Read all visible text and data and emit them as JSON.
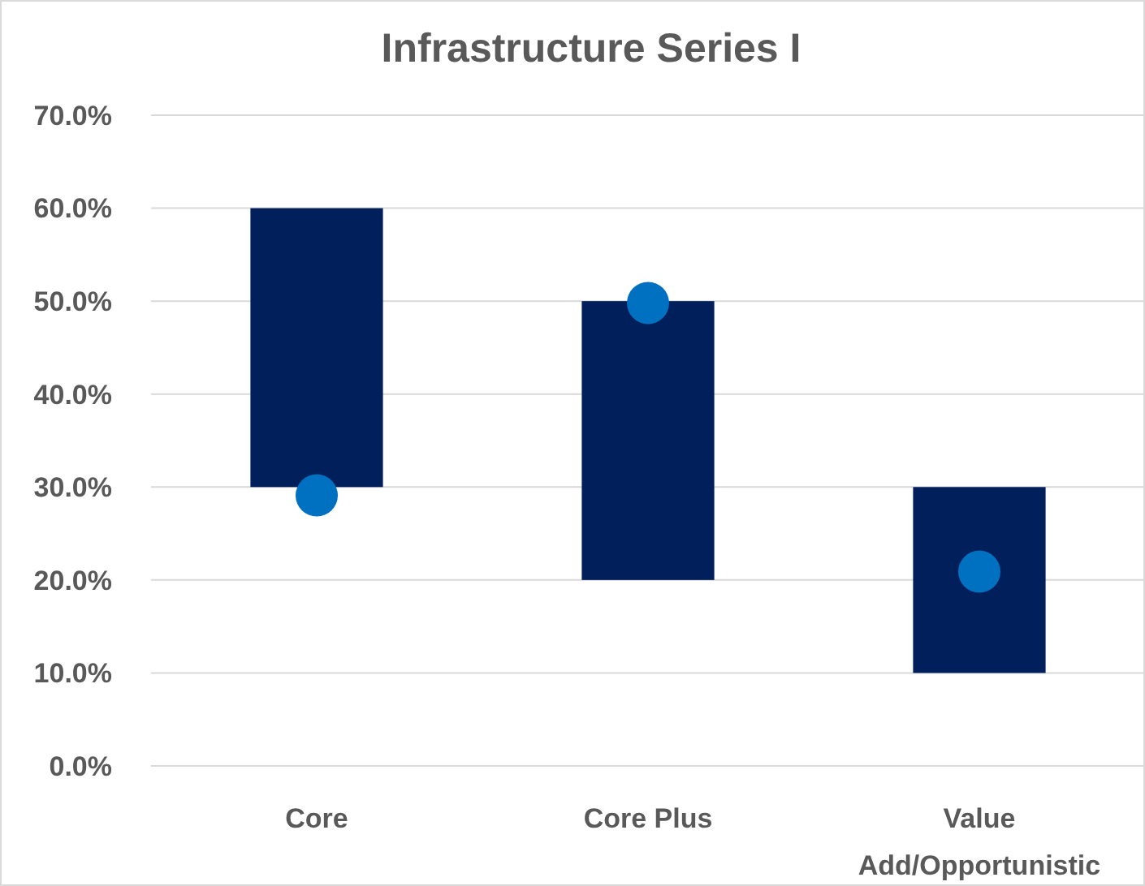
{
  "chart_data": {
    "type": "bar",
    "title": "Infrastructure Series I",
    "categories": [
      "Core",
      "Core Plus",
      "Value Add/Opportunistic"
    ],
    "series": [
      {
        "type": "bar",
        "color": "#001f5b",
        "values": [
          30,
          30,
          20
        ],
        "base": [
          30,
          20,
          10
        ]
      },
      {
        "type": "scatter",
        "color": "#0070c0",
        "x": [
          "Core",
          "Core Plus",
          "Value Add/Opportunistic"
        ],
        "values": [
          29.1,
          49.8,
          20.9
        ],
        "marker": "circle"
      }
    ],
    "ylim": [
      0,
      70
    ],
    "yticks": [
      {
        "value": 0,
        "label": "0.0%"
      },
      {
        "value": 10,
        "label": "10.0%"
      },
      {
        "value": 20,
        "label": "20.0%"
      },
      {
        "value": 30,
        "label": "30.0%"
      },
      {
        "value": 40,
        "label": "40.0%"
      },
      {
        "value": 50,
        "label": "50.0%"
      },
      {
        "value": 60,
        "label": "60.0%"
      },
      {
        "value": 70,
        "label": "70.0%"
      }
    ],
    "grid": "y"
  }
}
